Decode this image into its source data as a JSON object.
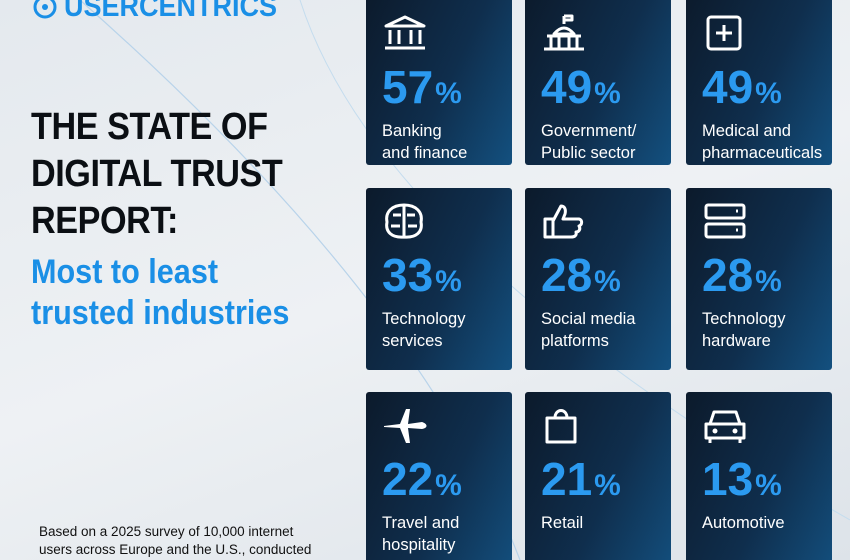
{
  "header": {
    "logo": "USERCENTRICS"
  },
  "title": {
    "lines": [
      "THE STATE OF",
      "DIGITAL TRUST",
      "REPORT:"
    ]
  },
  "subtitle": {
    "lines": [
      "Most to least",
      "trusted industries"
    ]
  },
  "unit": "%",
  "cards": [
    {
      "value": 57,
      "label": [
        "Banking",
        "and finance"
      ]
    },
    {
      "value": 49,
      "label": [
        "Government/",
        "Public sector"
      ]
    },
    {
      "value": 49,
      "label": [
        "Medical and",
        "pharmaceuticals"
      ]
    },
    {
      "value": 33,
      "label": [
        "Technology",
        "services"
      ]
    },
    {
      "value": 28,
      "label": [
        "Social media",
        "platforms"
      ]
    },
    {
      "value": 28,
      "label": [
        "Technology",
        "hardware"
      ]
    },
    {
      "value": 22,
      "label": [
        "Travel and",
        "hospitality"
      ]
    },
    {
      "value": 21,
      "label": [
        "Retail"
      ]
    },
    {
      "value": 13,
      "label": [
        "Automotive"
      ]
    }
  ],
  "footnote": {
    "lines": [
      "Based on a 2025 survey of 10,000 internet",
      "users across Europe and the U.S., conducted"
    ]
  }
}
